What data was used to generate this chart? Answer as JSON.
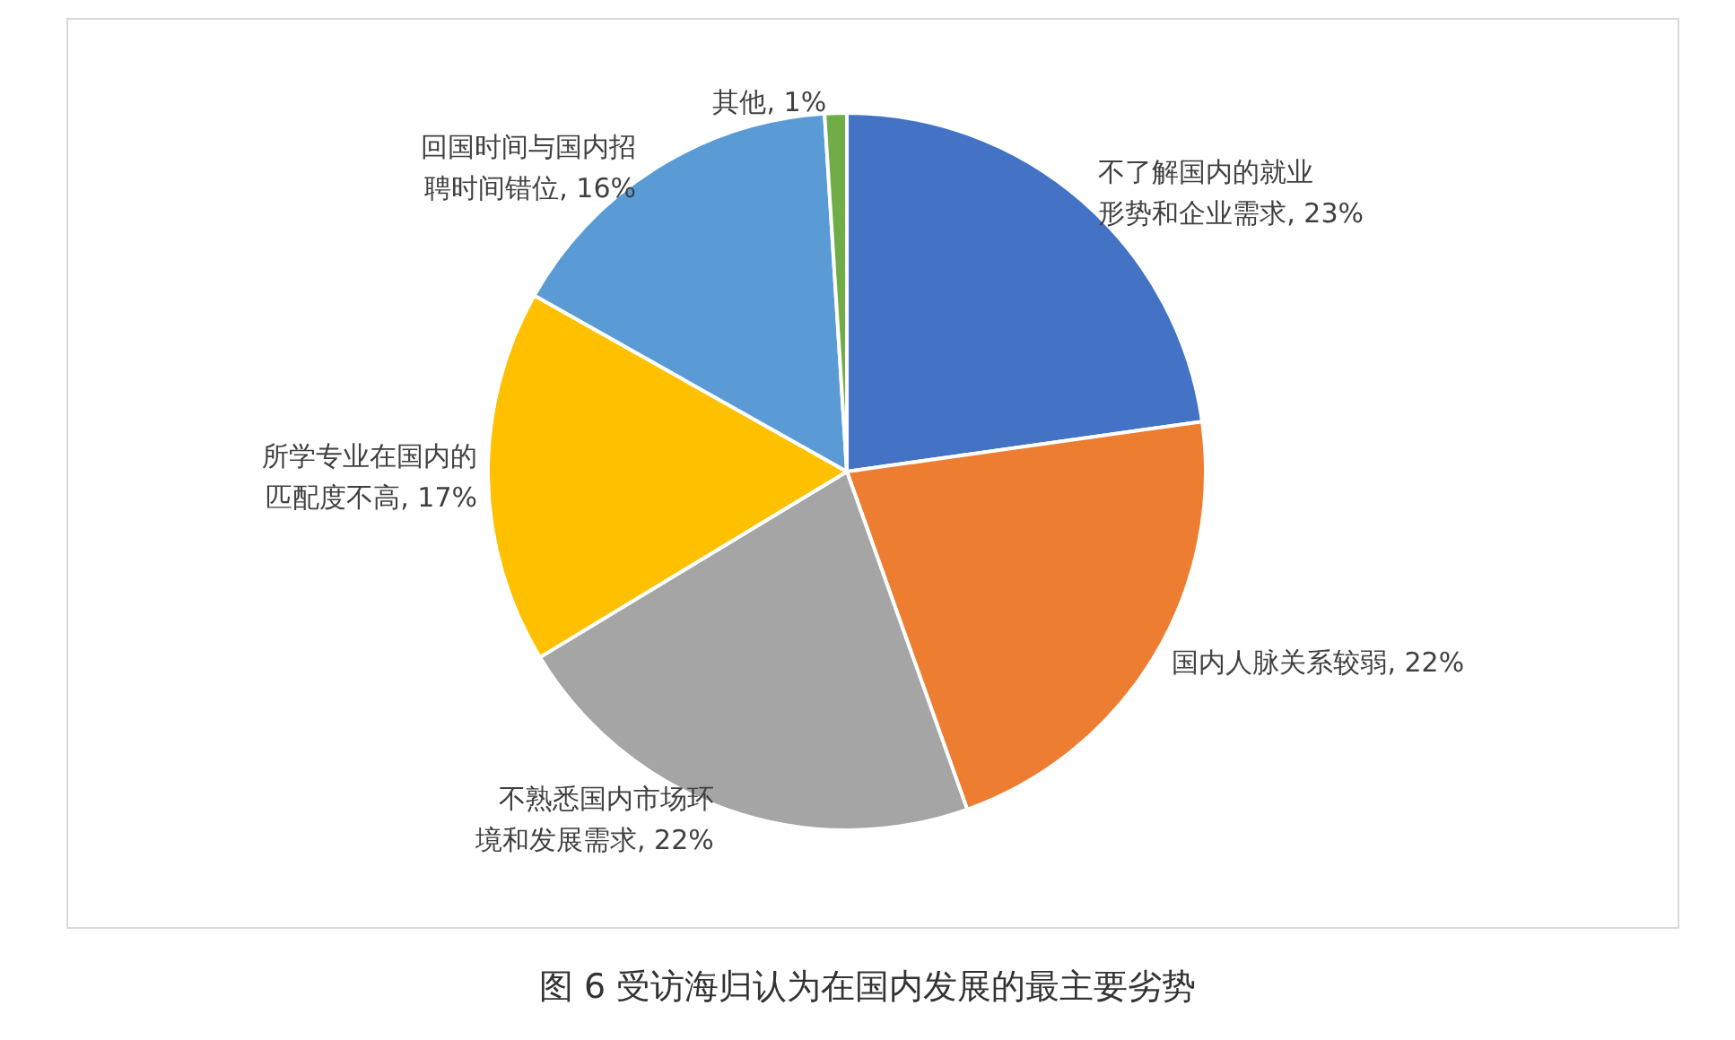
{
  "chart_data": {
    "type": "pie",
    "title": "图 6 受访海归认为在国内发展的最主要劣势",
    "categories": [
      "不了解国内的就业形势和企业需求",
      "国内人脉关系较弱",
      "不熟悉国内市场环境和发展需求",
      "所学专业在国内的匹配度不高",
      "回国时间与国内招聘时间错位",
      "其他"
    ],
    "values": [
      23,
      22,
      22,
      17,
      16,
      1
    ],
    "value_labels": [
      "23%",
      "22%",
      "22%",
      "17%",
      "16%",
      "1%"
    ],
    "colors": [
      "#4472c4",
      "#ed7d31",
      "#a5a5a5",
      "#ffc000",
      "#5b9bd5",
      "#70ad47"
    ]
  }
}
